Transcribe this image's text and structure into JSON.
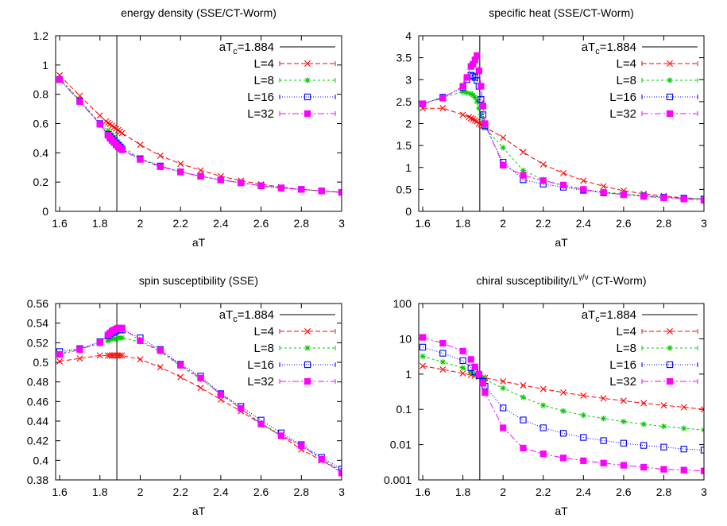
{
  "figure": {
    "title": ""
  },
  "chart_data": [
    {
      "type": "line",
      "title": "energy density (SSE/CT-Worm)",
      "xlabel": "aT",
      "ylabel": "",
      "xlim": [
        1.58,
        3.0
      ],
      "ylim": [
        0,
        1.2
      ],
      "yscale": "linear",
      "xticks": [
        "1.6",
        "1.8",
        "2",
        "2.2",
        "2.4",
        "2.6",
        "2.8",
        "3"
      ],
      "yticks": [
        "0",
        "0.2",
        "0.4",
        "0.6",
        "0.8",
        "1",
        "1.2"
      ],
      "vline": {
        "x": 1.884,
        "label": "aT_c=1.884"
      },
      "legend_position": "top-right",
      "series": [
        {
          "name": "L=4",
          "color": "#ff0000",
          "marker": "x",
          "dash": "6,3",
          "x": [
            1.6,
            1.7,
            1.8,
            1.83,
            1.84,
            1.85,
            1.86,
            1.87,
            1.88,
            1.89,
            1.9,
            1.91,
            2.0,
            2.1,
            2.2,
            2.3,
            2.4,
            2.5,
            2.6,
            2.7,
            2.8,
            2.9,
            3.0
          ],
          "y": [
            0.93,
            0.79,
            0.655,
            0.615,
            0.605,
            0.595,
            0.585,
            0.575,
            0.565,
            0.555,
            0.545,
            0.535,
            0.455,
            0.38,
            0.325,
            0.28,
            0.24,
            0.21,
            0.185,
            0.165,
            0.15,
            0.14,
            0.13
          ]
        },
        {
          "name": "L=8",
          "color": "#00cc00",
          "marker": "asterisk",
          "dash": "3,3",
          "x": [
            1.6,
            1.7,
            1.8,
            1.84,
            1.85,
            1.86,
            1.87,
            1.88,
            1.89,
            1.9,
            1.91,
            2.0,
            2.1,
            2.2,
            2.3,
            2.4,
            2.5,
            2.6,
            2.7,
            2.8,
            2.9,
            3.0
          ],
          "y": [
            0.91,
            0.76,
            0.6,
            0.55,
            0.535,
            0.52,
            0.505,
            0.49,
            0.475,
            0.46,
            0.445,
            0.36,
            0.31,
            0.27,
            0.24,
            0.215,
            0.195,
            0.175,
            0.16,
            0.15,
            0.14,
            0.13
          ]
        },
        {
          "name": "L=16",
          "color": "#0000ff",
          "marker": "square-open",
          "dash": "1,2",
          "x": [
            1.6,
            1.7,
            1.8,
            1.84,
            1.85,
            1.86,
            1.87,
            1.88,
            1.89,
            1.9,
            1.91,
            2.0,
            2.1,
            2.2,
            2.3,
            2.4,
            2.5,
            2.6,
            2.7,
            2.8,
            2.9,
            3.0
          ],
          "y": [
            0.9,
            0.755,
            0.6,
            0.525,
            0.51,
            0.495,
            0.48,
            0.465,
            0.45,
            0.44,
            0.425,
            0.36,
            0.31,
            0.27,
            0.24,
            0.215,
            0.195,
            0.175,
            0.16,
            0.15,
            0.14,
            0.13
          ]
        },
        {
          "name": "L=32",
          "color": "#ff00ff",
          "marker": "square-filled",
          "dash": "8,3,2,3",
          "x": [
            1.6,
            1.7,
            1.8,
            1.84,
            1.85,
            1.86,
            1.87,
            1.88,
            1.89,
            1.9,
            1.91,
            2.0,
            2.1,
            2.2,
            2.3,
            2.4,
            2.5,
            2.6,
            2.7,
            2.8,
            2.9,
            3.0
          ],
          "y": [
            0.9,
            0.75,
            0.595,
            0.52,
            0.5,
            0.485,
            0.47,
            0.455,
            0.44,
            0.43,
            0.42,
            0.355,
            0.305,
            0.27,
            0.24,
            0.215,
            0.195,
            0.175,
            0.16,
            0.15,
            0.14,
            0.13
          ]
        }
      ]
    },
    {
      "type": "line",
      "title": "specific heat (SSE/CT-Worm)",
      "xlabel": "aT",
      "ylabel": "",
      "xlim": [
        1.58,
        3.0
      ],
      "ylim": [
        0,
        4
      ],
      "yscale": "linear",
      "xticks": [
        "1.6",
        "1.8",
        "2",
        "2.2",
        "2.4",
        "2.6",
        "2.8",
        "3"
      ],
      "yticks": [
        "0",
        "0.5",
        "1",
        "1.5",
        "2",
        "2.5",
        "3",
        "3.5",
        "4"
      ],
      "vline": {
        "x": 1.884,
        "label": "aT_c=1.884"
      },
      "legend_position": "top-right",
      "series": [
        {
          "name": "L=4",
          "color": "#ff0000",
          "marker": "x",
          "dash": "6,3",
          "x": [
            1.6,
            1.7,
            1.8,
            1.83,
            1.84,
            1.85,
            1.86,
            1.87,
            1.88,
            1.89,
            1.9,
            1.91,
            2.0,
            2.1,
            2.2,
            2.3,
            2.4,
            2.5,
            2.6,
            2.7,
            2.8,
            2.9,
            3.0
          ],
          "y": [
            2.35,
            2.35,
            2.2,
            2.15,
            2.12,
            2.1,
            2.07,
            2.05,
            2.0,
            1.98,
            1.95,
            1.92,
            1.68,
            1.35,
            1.07,
            0.87,
            0.7,
            0.57,
            0.47,
            0.4,
            0.35,
            0.31,
            0.28
          ]
        },
        {
          "name": "L=8",
          "color": "#00cc00",
          "marker": "asterisk",
          "dash": "3,3",
          "x": [
            1.6,
            1.7,
            1.8,
            1.82,
            1.84,
            1.85,
            1.86,
            1.87,
            1.88,
            1.89,
            1.9,
            1.91,
            2.0,
            2.1,
            2.2,
            2.3,
            2.4,
            2.5,
            2.6,
            2.7,
            2.8,
            2.9,
            3.0
          ],
          "y": [
            2.45,
            2.6,
            2.72,
            2.7,
            2.68,
            2.65,
            2.6,
            2.5,
            2.35,
            2.2,
            2.05,
            1.9,
            1.45,
            0.93,
            0.72,
            0.58,
            0.5,
            0.44,
            0.4,
            0.36,
            0.33,
            0.3,
            0.28
          ]
        },
        {
          "name": "L=16",
          "color": "#0000ff",
          "marker": "square-open",
          "dash": "1,2",
          "x": [
            1.6,
            1.7,
            1.8,
            1.82,
            1.84,
            1.85,
            1.86,
            1.87,
            1.88,
            1.89,
            1.9,
            1.91,
            2.0,
            2.1,
            2.2,
            2.3,
            2.4,
            2.5,
            2.6,
            2.7,
            2.8,
            2.9,
            3.0
          ],
          "y": [
            2.45,
            2.6,
            2.82,
            3.0,
            3.1,
            3.08,
            3.05,
            2.98,
            2.85,
            2.55,
            2.2,
            1.95,
            1.12,
            0.72,
            0.62,
            0.55,
            0.48,
            0.42,
            0.38,
            0.35,
            0.32,
            0.3,
            0.28
          ]
        },
        {
          "name": "L=32",
          "color": "#ff00ff",
          "marker": "square-filled",
          "dash": "8,3,2,3",
          "x": [
            1.6,
            1.7,
            1.8,
            1.82,
            1.84,
            1.85,
            1.86,
            1.87,
            1.88,
            1.89,
            1.9,
            1.91,
            2.0,
            2.1,
            2.2,
            2.3,
            2.4,
            2.5,
            2.6,
            2.7,
            2.8,
            2.9,
            3.0
          ],
          "y": [
            2.45,
            2.58,
            2.85,
            3.05,
            3.3,
            3.35,
            3.45,
            3.55,
            3.2,
            2.85,
            2.4,
            2.0,
            1.05,
            0.82,
            0.7,
            0.6,
            0.5,
            0.43,
            0.38,
            0.34,
            0.31,
            0.28,
            0.25
          ]
        }
      ]
    },
    {
      "type": "line",
      "title": "spin susceptibility (SSE)",
      "xlabel": "aT",
      "ylabel": "",
      "xlim": [
        1.58,
        3.0
      ],
      "ylim": [
        0.38,
        0.56
      ],
      "yscale": "linear",
      "xticks": [
        "1.6",
        "1.8",
        "2",
        "2.2",
        "2.4",
        "2.6",
        "2.8",
        "3"
      ],
      "yticks": [
        "0.38",
        "0.4",
        "0.42",
        "0.44",
        "0.46",
        "0.48",
        "0.5",
        "0.52",
        "0.54",
        "0.56"
      ],
      "vline": {
        "x": 1.884,
        "label": "aT_c=1.884"
      },
      "legend_position": "top-right",
      "series": [
        {
          "name": "L=4",
          "color": "#ff0000",
          "marker": "x",
          "dash": "6,3",
          "x": [
            1.6,
            1.7,
            1.8,
            1.84,
            1.85,
            1.86,
            1.87,
            1.88,
            1.89,
            1.9,
            1.91,
            2.0,
            2.1,
            2.2,
            2.3,
            2.4,
            2.5,
            2.6,
            2.7,
            2.8,
            2.9,
            3.0
          ],
          "y": [
            0.501,
            0.504,
            0.507,
            0.507,
            0.507,
            0.507,
            0.507,
            0.507,
            0.507,
            0.507,
            0.507,
            0.503,
            0.495,
            0.485,
            0.474,
            0.462,
            0.45,
            0.437,
            0.425,
            0.411,
            0.4,
            0.388
          ]
        },
        {
          "name": "L=8",
          "color": "#00cc00",
          "marker": "asterisk",
          "dash": "3,3",
          "x": [
            1.6,
            1.7,
            1.8,
            1.84,
            1.85,
            1.86,
            1.87,
            1.88,
            1.89,
            1.9,
            1.91,
            2.0,
            2.1,
            2.2,
            2.3,
            2.4,
            2.5,
            2.6,
            2.7,
            2.8,
            2.9,
            3.0
          ],
          "y": [
            0.509,
            0.514,
            0.519,
            0.522,
            0.523,
            0.524,
            0.524,
            0.524,
            0.525,
            0.525,
            0.525,
            0.521,
            0.511,
            0.496,
            0.483,
            0.468,
            0.453,
            0.438,
            0.426,
            0.415,
            0.402,
            0.389
          ]
        },
        {
          "name": "L=16",
          "color": "#0000ff",
          "marker": "square-open",
          "dash": "1,2",
          "x": [
            1.6,
            1.7,
            1.8,
            1.84,
            1.85,
            1.86,
            1.87,
            1.88,
            1.89,
            1.9,
            1.91,
            2.0,
            2.1,
            2.2,
            2.3,
            2.4,
            2.5,
            2.6,
            2.7,
            2.8,
            2.9,
            3.0
          ],
          "y": [
            0.511,
            0.514,
            0.521,
            0.527,
            0.529,
            0.53,
            0.531,
            0.532,
            0.533,
            0.533,
            0.533,
            0.525,
            0.513,
            0.498,
            0.486,
            0.468,
            0.455,
            0.441,
            0.428,
            0.416,
            0.403,
            0.391
          ]
        },
        {
          "name": "L=32",
          "color": "#ff00ff",
          "marker": "square-filled",
          "dash": "8,3,2,3",
          "x": [
            1.6,
            1.7,
            1.8,
            1.84,
            1.85,
            1.86,
            1.87,
            1.88,
            1.89,
            1.9,
            1.91,
            2.0,
            2.1,
            2.2,
            2.3,
            2.4,
            2.5,
            2.6,
            2.7,
            2.8,
            2.9,
            3.0
          ],
          "y": [
            0.508,
            0.513,
            0.52,
            0.528,
            0.53,
            0.532,
            0.533,
            0.534,
            0.535,
            0.535,
            0.535,
            0.522,
            0.512,
            0.497,
            0.484,
            0.467,
            0.453,
            0.437,
            0.425,
            0.415,
            0.401,
            0.387
          ]
        }
      ]
    },
    {
      "type": "line",
      "title": "chiral susceptibility/L^{γ/ν} (CT-Worm)",
      "xlabel": "aT",
      "ylabel": "",
      "xlim": [
        1.58,
        3.0
      ],
      "ylim": [
        0.001,
        100
      ],
      "yscale": "log",
      "xticks": [
        "1.6",
        "1.8",
        "2",
        "2.2",
        "2.4",
        "2.6",
        "2.8",
        "3"
      ],
      "yticks": [
        "0.001",
        "0.01",
        "0.1",
        "1",
        "10",
        "100"
      ],
      "vline": {
        "x": 1.884,
        "label": "aT_c=1.884"
      },
      "legend_position": "top-right",
      "series": [
        {
          "name": "L=4",
          "color": "#ff0000",
          "marker": "x",
          "dash": "6,3",
          "x": [
            1.6,
            1.7,
            1.8,
            1.84,
            1.86,
            1.88,
            1.9,
            1.91,
            2.0,
            2.1,
            2.2,
            2.3,
            2.4,
            2.5,
            2.6,
            2.7,
            2.8,
            2.9,
            3.0
          ],
          "y": [
            1.7,
            1.35,
            1.05,
            0.95,
            0.9,
            0.85,
            0.8,
            0.78,
            0.62,
            0.48,
            0.38,
            0.3,
            0.245,
            0.205,
            0.175,
            0.15,
            0.13,
            0.115,
            0.1
          ]
        },
        {
          "name": "L=8",
          "color": "#00cc00",
          "marker": "asterisk",
          "dash": "3,3",
          "x": [
            1.6,
            1.7,
            1.8,
            1.84,
            1.86,
            1.88,
            1.9,
            1.91,
            2.0,
            2.1,
            2.2,
            2.3,
            2.4,
            2.5,
            2.6,
            2.7,
            2.8,
            2.9,
            3.0
          ],
          "y": [
            3.2,
            2.2,
            1.5,
            1.15,
            1.0,
            0.88,
            0.78,
            0.7,
            0.4,
            0.22,
            0.13,
            0.09,
            0.068,
            0.055,
            0.045,
            0.038,
            0.033,
            0.029,
            0.026
          ]
        },
        {
          "name": "L=16",
          "color": "#0000ff",
          "marker": "square-open",
          "dash": "1,2",
          "x": [
            1.6,
            1.7,
            1.8,
            1.84,
            1.86,
            1.88,
            1.9,
            1.91,
            2.0,
            2.1,
            2.2,
            2.3,
            2.4,
            2.5,
            2.6,
            2.7,
            2.8,
            2.9,
            3.0
          ],
          "y": [
            5.8,
            3.9,
            2.4,
            1.5,
            1.15,
            0.9,
            0.62,
            0.45,
            0.11,
            0.05,
            0.03,
            0.021,
            0.016,
            0.013,
            0.011,
            0.0095,
            0.0085,
            0.0075,
            0.007
          ]
        },
        {
          "name": "L=32",
          "color": "#ff00ff",
          "marker": "square-filled",
          "dash": "8,3,2,3",
          "x": [
            1.6,
            1.7,
            1.8,
            1.84,
            1.86,
            1.88,
            1.9,
            1.91,
            2.0,
            2.1,
            2.2,
            2.3,
            2.4,
            2.5,
            2.6,
            2.7,
            2.8,
            2.9,
            3.0
          ],
          "y": [
            11,
            7.5,
            4.5,
            2.6,
            1.6,
            1.0,
            0.55,
            0.3,
            0.03,
            0.008,
            0.0055,
            0.0042,
            0.0035,
            0.003,
            0.0026,
            0.0023,
            0.002,
            0.0019,
            0.0018
          ]
        }
      ]
    }
  ]
}
